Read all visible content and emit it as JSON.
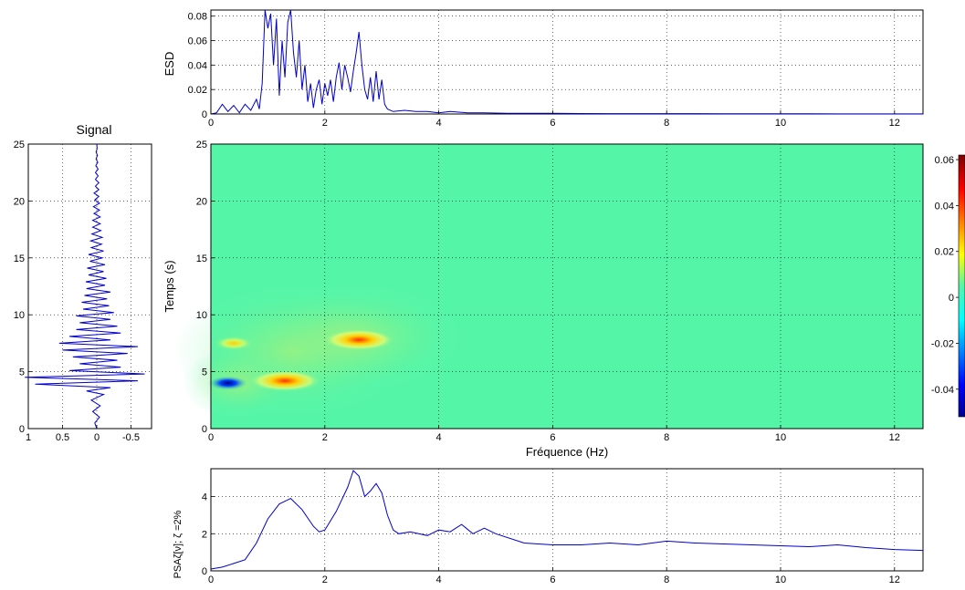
{
  "chart_data": [
    {
      "id": "esd",
      "type": "line",
      "ylabel": "ESD",
      "xlim": [
        0,
        12.5
      ],
      "ylim": [
        0,
        0.085
      ],
      "xticks": [
        "0",
        "2",
        "4",
        "6",
        "8",
        "10",
        "12"
      ],
      "yticks": [
        "0",
        "0.02",
        "0.04",
        "0.06",
        "0.08"
      ],
      "grid": true,
      "color": "#0000cc",
      "x": [
        0,
        0.1,
        0.2,
        0.3,
        0.4,
        0.5,
        0.6,
        0.7,
        0.8,
        0.85,
        0.9,
        0.95,
        1.0,
        1.05,
        1.1,
        1.15,
        1.2,
        1.25,
        1.3,
        1.35,
        1.4,
        1.45,
        1.5,
        1.55,
        1.6,
        1.65,
        1.7,
        1.75,
        1.8,
        1.85,
        1.9,
        1.95,
        2.0,
        2.05,
        2.1,
        2.15,
        2.2,
        2.25,
        2.3,
        2.35,
        2.4,
        2.45,
        2.5,
        2.55,
        2.6,
        2.65,
        2.7,
        2.75,
        2.8,
        2.85,
        2.9,
        2.95,
        3.0,
        3.05,
        3.1,
        3.2,
        3.4,
        3.6,
        3.8,
        4.0,
        4.2,
        4.5,
        4.8,
        5.2,
        6.0,
        7.0,
        8.0,
        9.0,
        10.0,
        11.0,
        12.0,
        12.5
      ],
      "y": [
        0,
        0.001,
        0.008,
        0.002,
        0.007,
        0.001,
        0.008,
        0.003,
        0.012,
        0.004,
        0.025,
        0.085,
        0.07,
        0.082,
        0.04,
        0.078,
        0.015,
        0.06,
        0.03,
        0.075,
        0.085,
        0.05,
        0.03,
        0.06,
        0.02,
        0.04,
        0.01,
        0.025,
        0.005,
        0.02,
        0.028,
        0.008,
        0.025,
        0.015,
        0.028,
        0.01,
        0.03,
        0.042,
        0.02,
        0.04,
        0.03,
        0.018,
        0.035,
        0.05,
        0.067,
        0.04,
        0.02,
        0.012,
        0.03,
        0.01,
        0.035,
        0.012,
        0.028,
        0.008,
        0.004,
        0.002,
        0.003,
        0.002,
        0.002,
        0.001,
        0.002,
        0.001,
        0.001,
        0.0005,
        0.0005,
        0.0003,
        0.0003,
        0.0002,
        0.0002,
        0.0001,
        0.0001,
        0.0001
      ]
    },
    {
      "id": "signal",
      "type": "line",
      "title": "Signal",
      "orientation": "vertical",
      "xlim": [
        1,
        -0.8
      ],
      "ylim": [
        0,
        25
      ],
      "xticks": [
        "1",
        "0.5",
        "0",
        "-0.5"
      ],
      "yticks": [
        "0",
        "5",
        "10",
        "15",
        "20",
        "25"
      ],
      "grid": true,
      "color": "#0000cc",
      "t": [
        0,
        0.5,
        1,
        1.5,
        2,
        2.5,
        3,
        3.3,
        3.6,
        3.9,
        4.2,
        4.5,
        4.8,
        5.1,
        5.4,
        5.7,
        6.0,
        6.3,
        6.6,
        6.9,
        7.2,
        7.5,
        7.8,
        8.1,
        8.4,
        8.7,
        9.0,
        9.3,
        9.6,
        9.9,
        10.2,
        10.5,
        10.8,
        11.1,
        11.4,
        11.7,
        12.0,
        12.3,
        12.6,
        12.9,
        13.2,
        13.5,
        13.8,
        14.1,
        14.4,
        14.7,
        15.0,
        15.3,
        15.6,
        15.9,
        16.2,
        16.5,
        16.8,
        17.1,
        17.4,
        17.7,
        18.0,
        18.3,
        18.6,
        18.9,
        19.2,
        19.5,
        19.8,
        20.1,
        20.4,
        20.7,
        21.0,
        21.3,
        21.6,
        21.9,
        22.2,
        22.5,
        22.8,
        23.1,
        23.4,
        23.7,
        24.0,
        24.3,
        24.6,
        25.0
      ],
      "a": [
        0,
        0.03,
        -0.04,
        0.06,
        -0.05,
        0.08,
        -0.1,
        0.15,
        -0.2,
        0.9,
        -0.6,
        1.05,
        -0.7,
        0.4,
        -0.35,
        0.25,
        -0.3,
        0.35,
        -0.45,
        0.5,
        -0.6,
        0.55,
        -0.2,
        0.4,
        -0.35,
        0.3,
        -0.3,
        0.25,
        -0.2,
        0.3,
        -0.25,
        0.2,
        -0.18,
        0.22,
        -0.15,
        0.18,
        -0.2,
        0.15,
        -0.12,
        0.16,
        -0.14,
        0.12,
        -0.1,
        0.14,
        -0.12,
        0.1,
        -0.08,
        0.12,
        -0.1,
        0.08,
        -0.07,
        0.09,
        -0.08,
        0.07,
        -0.06,
        0.06,
        -0.05,
        0.06,
        -0.05,
        0.04,
        -0.04,
        0.05,
        -0.04,
        0.03,
        -0.03,
        0.04,
        -0.03,
        0.02,
        -0.03,
        0.02,
        -0.02,
        0.02,
        -0.02,
        0.015,
        -0.015,
        0.01,
        -0.01,
        0.01,
        -0.005,
        0
      ]
    },
    {
      "id": "distribution",
      "type": "heatmap",
      "xlabel": "Fréquence (Hz)",
      "ylabel": "Temps (s)",
      "xlim": [
        0,
        12.5
      ],
      "ylim": [
        0,
        25
      ],
      "xticks": [
        "0",
        "2",
        "4",
        "6",
        "8",
        "10",
        "12"
      ],
      "yticks": [
        "0",
        "5",
        "10",
        "15",
        "20",
        "25"
      ],
      "background_color": "#55f5a8",
      "grid": true,
      "colorbar": {
        "min": -0.052,
        "max": 0.062,
        "ticks": [
          "0.06",
          "0.04",
          "0.02",
          "0",
          "-0.02",
          "-0.04"
        ],
        "colormap": "jet"
      },
      "hotspots": [
        {
          "x": 1.3,
          "y": 4.2,
          "value": 0.06
        },
        {
          "x": 2.6,
          "y": 7.8,
          "value": 0.05
        },
        {
          "x": 0.3,
          "y": 4.0,
          "value": -0.05
        },
        {
          "x": 0.4,
          "y": 7.5,
          "value": 0.03
        }
      ]
    },
    {
      "id": "psa",
      "type": "line",
      "ylabel": "PSAζ[ν]; ζ =2%",
      "xlim": [
        0,
        12.5
      ],
      "ylim": [
        0,
        5.5
      ],
      "xticks": [
        "0",
        "2",
        "4",
        "6",
        "8",
        "10",
        "12"
      ],
      "yticks": [
        "0",
        "2",
        "4"
      ],
      "grid": true,
      "color": "#0000cc",
      "x": [
        0,
        0.2,
        0.4,
        0.6,
        0.8,
        1.0,
        1.2,
        1.4,
        1.6,
        1.8,
        1.9,
        2.0,
        2.2,
        2.4,
        2.5,
        2.6,
        2.7,
        2.8,
        2.9,
        3.0,
        3.1,
        3.2,
        3.3,
        3.5,
        3.8,
        4.0,
        4.2,
        4.4,
        4.6,
        4.8,
        5.0,
        5.5,
        6.0,
        6.5,
        7.0,
        7.5,
        8.0,
        8.5,
        9.0,
        9.5,
        10.0,
        10.5,
        11.0,
        11.5,
        12.0,
        12.5
      ],
      "y": [
        0.1,
        0.2,
        0.4,
        0.6,
        1.5,
        2.8,
        3.6,
        3.9,
        3.3,
        2.4,
        2.1,
        2.2,
        3.2,
        4.5,
        5.4,
        5.1,
        4.0,
        4.3,
        4.7,
        4.2,
        3.0,
        2.2,
        2.0,
        2.1,
        1.9,
        2.2,
        2.1,
        2.5,
        2.0,
        2.3,
        2.0,
        1.5,
        1.4,
        1.4,
        1.5,
        1.4,
        1.6,
        1.5,
        1.45,
        1.4,
        1.35,
        1.3,
        1.4,
        1.25,
        1.15,
        1.1
      ]
    }
  ]
}
